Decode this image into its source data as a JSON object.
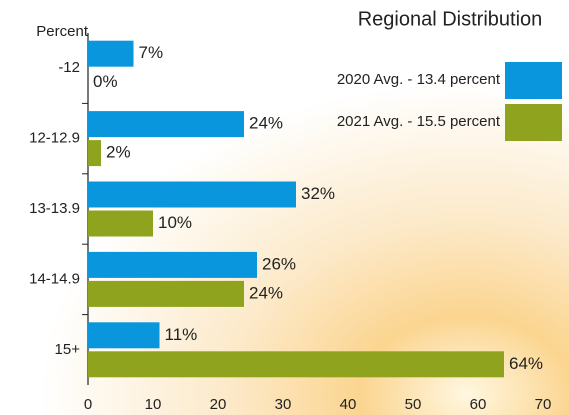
{
  "chart_data": {
    "type": "bar",
    "orientation": "horizontal",
    "title": "Regional Distribution",
    "y_label": "Percent",
    "categories": [
      "-12",
      "12-12.9",
      "13-13.9",
      "14-14.9",
      "15+"
    ],
    "series": [
      {
        "name": "2020 Avg. - 13.4 percent",
        "color": "#0a96dc",
        "values": [
          7,
          24,
          32,
          26,
          11
        ],
        "value_labels": [
          "7%",
          "24%",
          "32%",
          "26%",
          "11%"
        ]
      },
      {
        "name": "2021 Avg. - 15.5 percent",
        "color": "#8fa31e",
        "values": [
          0,
          2,
          10,
          24,
          64
        ],
        "value_labels": [
          "0%",
          "2%",
          "10%",
          "24%",
          "64%"
        ]
      }
    ],
    "xlim": [
      0,
      70
    ],
    "xticks": [
      0,
      10,
      20,
      30,
      40,
      50,
      60,
      70
    ],
    "legend": "top-right"
  }
}
